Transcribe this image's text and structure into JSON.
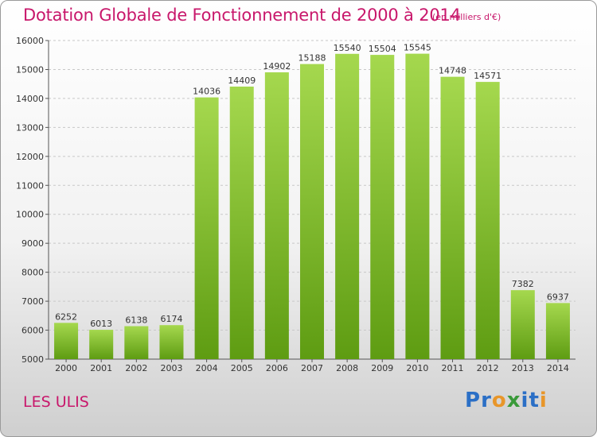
{
  "header": {
    "title": "Dotation Globale de Fonctionnement de 2000 à 2014",
    "subtitle": "(en milliers d'€)"
  },
  "footer": {
    "city": "LES ULIS",
    "logo_letters": [
      {
        "ch": "P",
        "color": "#2b6fc6"
      },
      {
        "ch": "r",
        "color": "#2b6fc6"
      },
      {
        "ch": "o",
        "color": "#e8962a"
      },
      {
        "ch": "x",
        "color": "#3a9a3a"
      },
      {
        "ch": "i",
        "color": "#2b6fc6"
      },
      {
        "ch": "t",
        "color": "#2b6fc6"
      },
      {
        "ch": "i",
        "color": "#e8962a"
      }
    ]
  },
  "chart_data": {
    "type": "bar",
    "title": "Dotation Globale de Fonctionnement de 2000 à 2014",
    "subtitle": "(en milliers d'€)",
    "categories": [
      "2000",
      "2001",
      "2002",
      "2003",
      "2004",
      "2005",
      "2006",
      "2007",
      "2008",
      "2009",
      "2010",
      "2011",
      "2012",
      "2013",
      "2014"
    ],
    "values": [
      6252,
      6013,
      6138,
      6174,
      14036,
      14409,
      14902,
      15188,
      15540,
      15504,
      15545,
      14748,
      14571,
      7382,
      6937
    ],
    "ylim": [
      5000,
      16000
    ],
    "yticks": [
      5000,
      6000,
      7000,
      8000,
      9000,
      10000,
      11000,
      12000,
      13000,
      14000,
      15000,
      16000
    ],
    "grid": true,
    "bar_color_top": "#a5d84e",
    "bar_color_bottom": "#5e9c12"
  }
}
